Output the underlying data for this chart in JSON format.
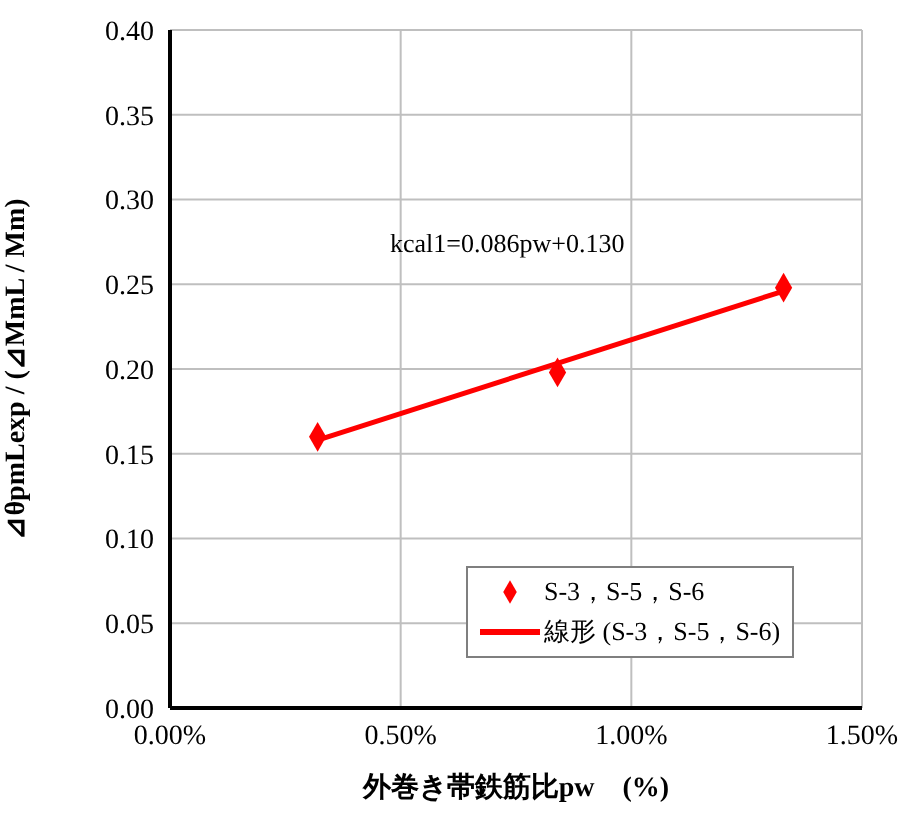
{
  "chart_data": {
    "type": "scatter",
    "xlabel": "外巻き帯鉄筋比pw　(%)",
    "ylabel": "⊿θpmLexp / (⊿MmL / Mm)",
    "xlim": [
      0,
      1.5
    ],
    "xticks": [
      {
        "value": 0,
        "label": "0.00%"
      },
      {
        "value": 0.5,
        "label": "0.50%"
      },
      {
        "value": 1,
        "label": "1.00%"
      },
      {
        "value": 1.5,
        "label": "1.50%"
      }
    ],
    "ylim": [
      0,
      0.4
    ],
    "yticks": [
      {
        "value": 0,
        "label": "0.00"
      },
      {
        "value": 0.05,
        "label": "0.05"
      },
      {
        "value": 0.1,
        "label": "0.10"
      },
      {
        "value": 0.15,
        "label": "0.15"
      },
      {
        "value": 0.2,
        "label": "0.20"
      },
      {
        "value": 0.25,
        "label": "0.25"
      },
      {
        "value": 0.3,
        "label": "0.30"
      },
      {
        "value": 0.35,
        "label": "0.35"
      },
      {
        "value": 0.4,
        "label": "0.40"
      }
    ],
    "grid": true,
    "legend": "bottom right",
    "annotations": [
      "kcal1=0.086pw+0.130"
    ],
    "series": [
      {
        "name": "S-3，S-5，S-6",
        "color": "#ff0000",
        "marker": "diamond",
        "x": [
          0.32,
          0.84,
          1.33
        ],
        "values": [
          0.16,
          0.198,
          0.248
        ]
      },
      {
        "type": "line",
        "name": "線形 (S-3，S-5，S-6)",
        "color": "#ff0000",
        "marker": "none",
        "x": [
          0.32,
          1.33
        ],
        "values": [
          0.158,
          0.246
        ]
      }
    ]
  }
}
